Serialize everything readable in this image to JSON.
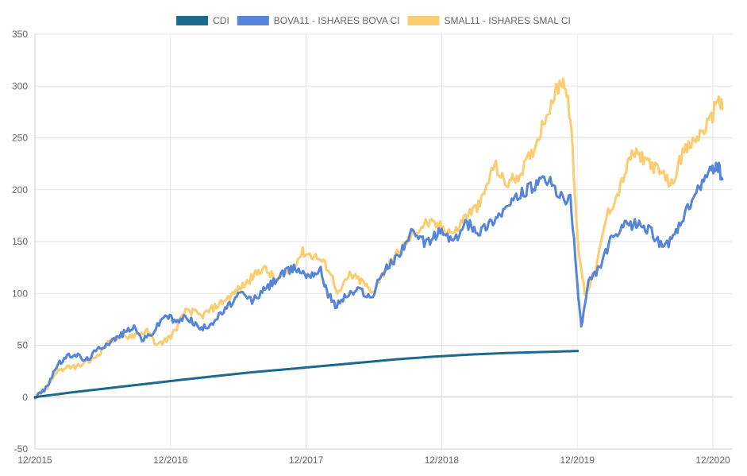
{
  "chart_data": {
    "type": "line",
    "title": "",
    "xlabel": "",
    "ylabel": "",
    "ylim": [
      -50,
      350
    ],
    "y_ticks": [
      -50,
      0,
      50,
      100,
      150,
      200,
      250,
      300,
      350
    ],
    "x_tick_labels": [
      "12/2015",
      "12/2016",
      "12/2017",
      "12/2018",
      "12/2019",
      "12/2020"
    ],
    "grid": true,
    "legend_position": "top-center",
    "series": [
      {
        "name": "CDI",
        "color": "#1b6a8e",
        "values": [
          [
            0,
            0
          ],
          [
            1,
            4.5
          ],
          [
            2,
            8.5
          ],
          [
            3,
            12.5
          ],
          [
            4,
            16.5
          ],
          [
            5,
            20.3
          ],
          [
            6,
            24
          ],
          [
            7,
            27
          ],
          [
            8,
            30.2
          ],
          [
            9,
            33.3
          ],
          [
            10,
            36.5
          ],
          [
            11,
            39
          ],
          [
            12,
            41
          ],
          [
            13,
            42.5
          ],
          [
            14,
            43.5
          ],
          [
            15,
            44.5
          ]
        ]
      },
      {
        "name": "BOVA11 - ISHARES BOVA CI",
        "color": "#5585d9",
        "values": [
          [
            0,
            0
          ],
          [
            0.3,
            8
          ],
          [
            0.6,
            30
          ],
          [
            0.85,
            38
          ],
          [
            1.1,
            42
          ],
          [
            1.4,
            35
          ],
          [
            1.8,
            48
          ],
          [
            2.3,
            58
          ],
          [
            2.7,
            68
          ],
          [
            3,
            55
          ],
          [
            3.3,
            64
          ],
          [
            3.6,
            80
          ],
          [
            3.9,
            72
          ],
          [
            4.2,
            78
          ],
          [
            4.6,
            65
          ],
          [
            5,
            75
          ],
          [
            5.3,
            86
          ],
          [
            5.7,
            100
          ],
          [
            6,
            93
          ],
          [
            6.4,
            105
          ],
          [
            6.8,
            118
          ],
          [
            7.2,
            125
          ],
          [
            7.5,
            118
          ],
          [
            7.9,
            122
          ],
          [
            8.1,
            100
          ],
          [
            8.3,
            88
          ],
          [
            8.6,
            98
          ],
          [
            9,
            104
          ],
          [
            9.3,
            95
          ],
          [
            9.6,
            120
          ],
          [
            10,
            135
          ],
          [
            10.4,
            158
          ],
          [
            10.8,
            148
          ],
          [
            11.2,
            160
          ],
          [
            11.6,
            150
          ],
          [
            11.9,
            168
          ],
          [
            12.3,
            160
          ],
          [
            12.7,
            172
          ],
          [
            13.1,
            185
          ],
          [
            13.5,
            198
          ],
          [
            13.9,
            205
          ],
          [
            14.2,
            210
          ],
          [
            14.5,
            193
          ],
          [
            14.8,
            190
          ],
          [
            15,
            105
          ],
          [
            15.1,
            68
          ],
          [
            15.3,
            110
          ],
          [
            15.6,
            125
          ],
          [
            15.9,
            150
          ],
          [
            16.3,
            165
          ],
          [
            16.7,
            168
          ],
          [
            17,
            160
          ],
          [
            17.3,
            148
          ],
          [
            17.6,
            150
          ],
          [
            18,
            178
          ],
          [
            18.4,
            205
          ],
          [
            18.7,
            218
          ],
          [
            18.85,
            225
          ],
          [
            19,
            210
          ]
        ]
      },
      {
        "name": "SMAL11 - ISHARES SMAL CI",
        "color": "#fccc70",
        "values": [
          [
            0,
            0
          ],
          [
            0.3,
            7
          ],
          [
            0.6,
            25
          ],
          [
            0.9,
            28
          ],
          [
            1.2,
            30
          ],
          [
            1.6,
            36
          ],
          [
            2.1,
            55
          ],
          [
            2.7,
            60
          ],
          [
            3.1,
            63
          ],
          [
            3.4,
            50
          ],
          [
            3.8,
            60
          ],
          [
            4.2,
            85
          ],
          [
            4.6,
            78
          ],
          [
            5.1,
            90
          ],
          [
            5.5,
            100
          ],
          [
            5.9,
            112
          ],
          [
            6.3,
            125
          ],
          [
            6.7,
            112
          ],
          [
            7.1,
            125
          ],
          [
            7.4,
            140
          ],
          [
            7.8,
            135
          ],
          [
            8.1,
            125
          ],
          [
            8.4,
            100
          ],
          [
            8.7,
            118
          ],
          [
            9.1,
            110
          ],
          [
            9.3,
            100
          ],
          [
            9.6,
            118
          ],
          [
            10,
            138
          ],
          [
            10.4,
            155
          ],
          [
            10.8,
            168
          ],
          [
            11.2,
            165
          ],
          [
            11.6,
            158
          ],
          [
            11.9,
            175
          ],
          [
            12.3,
            185
          ],
          [
            12.7,
            225
          ],
          [
            13,
            205
          ],
          [
            13.4,
            215
          ],
          [
            13.8,
            240
          ],
          [
            14.1,
            270
          ],
          [
            14.4,
            295
          ],
          [
            14.6,
            308
          ],
          [
            14.8,
            270
          ],
          [
            15,
            150
          ],
          [
            15.2,
            100
          ],
          [
            15.5,
            122
          ],
          [
            15.8,
            175
          ],
          [
            16.1,
            195
          ],
          [
            16.5,
            235
          ],
          [
            16.9,
            230
          ],
          [
            17.3,
            215
          ],
          [
            17.6,
            205
          ],
          [
            17.9,
            235
          ],
          [
            18.3,
            250
          ],
          [
            18.7,
            268
          ],
          [
            18.85,
            290
          ],
          [
            19,
            278
          ]
        ]
      }
    ]
  }
}
